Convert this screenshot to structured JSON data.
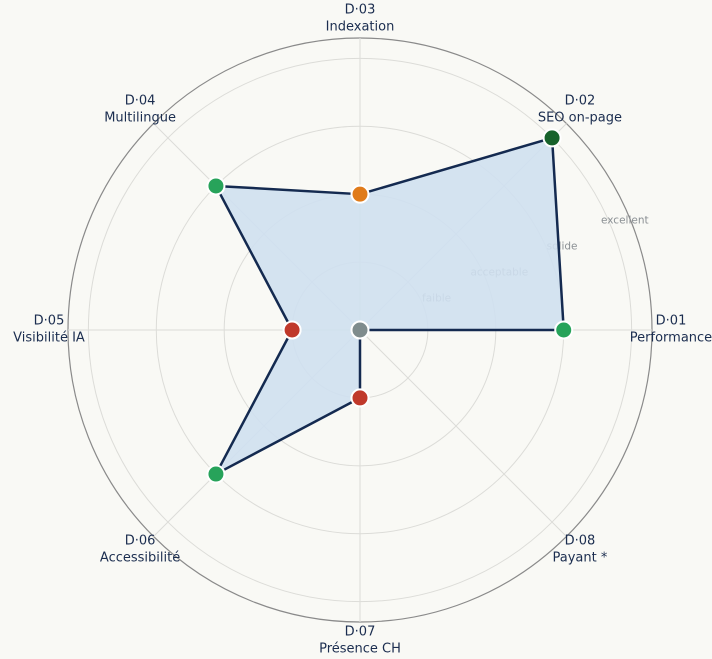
{
  "chart_data": {
    "type": "radar",
    "codes": [
      "D·01",
      "D·02",
      "D·03",
      "D·04",
      "D·05",
      "D·06",
      "D·07",
      "D·08"
    ],
    "categories": [
      "Performance",
      "SEO on-page",
      "Indexation",
      "Multilingue",
      "Visibilité IA",
      "Accessibilité",
      "Présence CH",
      "Payant *"
    ],
    "values": [
      3,
      4,
      2,
      3,
      1,
      3,
      1,
      0
    ],
    "point_colors": [
      "#27a35a",
      "#17622b",
      "#e07b1a",
      "#27a35a",
      "#c0392b",
      "#27a35a",
      "#c0392b",
      "#7f8c8d"
    ],
    "color": "#142a50",
    "fill": "#cfe0f0",
    "ylim": [
      0,
      4.3
    ],
    "yticks": [
      {
        "value": 1,
        "label": "faible"
      },
      {
        "value": 2,
        "label": "acceptable"
      },
      {
        "value": 3,
        "label": "solide"
      },
      {
        "value": 4,
        "label": "excellent"
      }
    ],
    "grid": true
  }
}
